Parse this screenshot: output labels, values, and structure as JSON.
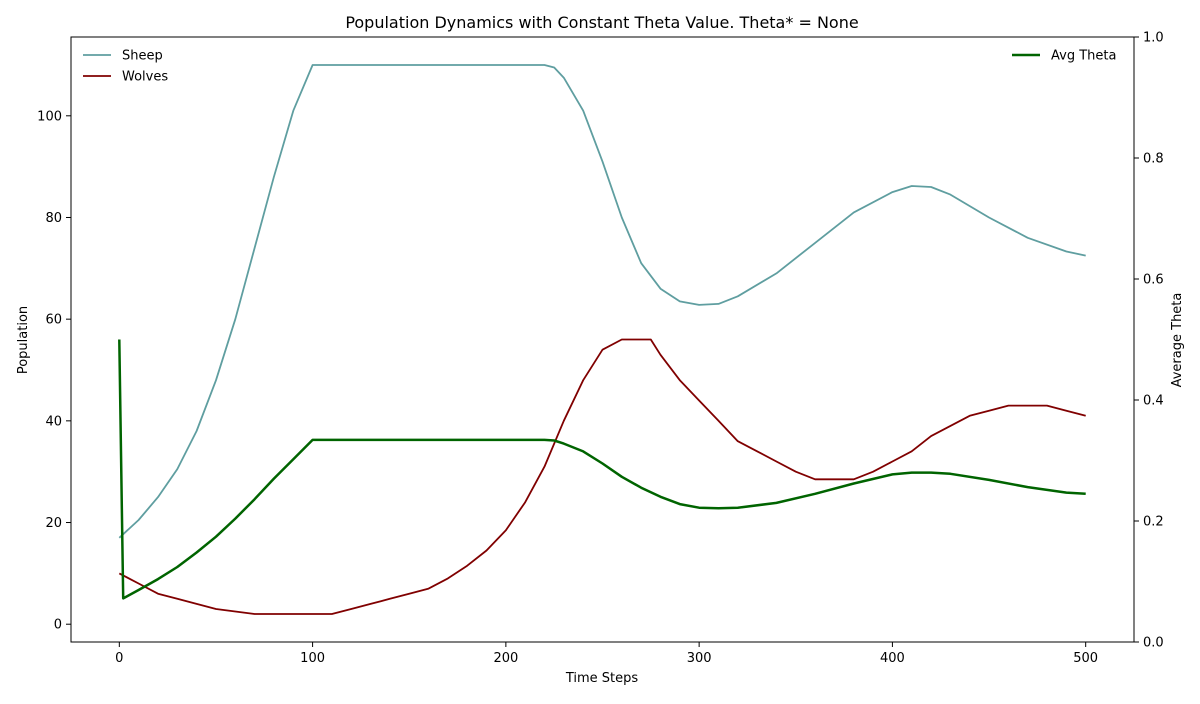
{
  "chart_data": {
    "type": "line",
    "title": "Population Dynamics with Constant Theta Value. Theta* = None",
    "xlabel": "Time Steps",
    "ylabel_left": "Population",
    "ylabel_right": "Average Theta",
    "xlim": [
      -25,
      525
    ],
    "ylim_left": [
      -3.5,
      115.5
    ],
    "ylim_right": [
      0,
      1
    ],
    "x_ticks": [
      0,
      100,
      200,
      300,
      400,
      500
    ],
    "y_ticks_left": [
      0,
      20,
      40,
      60,
      80,
      100
    ],
    "y_ticks_right": [
      0.0,
      0.2,
      0.4,
      0.6,
      0.8,
      1.0
    ],
    "grid": false,
    "legend_left_placement": "top-left",
    "legend_right_placement": "top-right",
    "series": [
      {
        "name": "Sheep",
        "axis": "left",
        "color": "#5f9ea0",
        "x": [
          0,
          10,
          20,
          30,
          40,
          50,
          60,
          70,
          80,
          90,
          100,
          110,
          120,
          140,
          160,
          180,
          200,
          220,
          225,
          230,
          240,
          250,
          260,
          270,
          280,
          290,
          300,
          310,
          320,
          340,
          360,
          380,
          400,
          410,
          420,
          430,
          450,
          470,
          490,
          500
        ],
        "values": [
          17,
          20.5,
          25,
          30.5,
          38,
          48,
          60,
          74,
          88,
          101,
          110,
          110,
          110,
          110,
          110,
          110,
          110,
          110,
          109.5,
          107.5,
          101,
          91,
          80,
          71,
          66,
          63.5,
          62.8,
          63,
          64.5,
          69,
          75,
          81,
          85,
          86.2,
          86,
          84.5,
          80,
          76,
          73.3,
          72.5
        ]
      },
      {
        "name": "Wolves",
        "axis": "left",
        "color": "#800000",
        "x": [
          0,
          10,
          20,
          30,
          40,
          50,
          60,
          70,
          80,
          90,
          100,
          110,
          120,
          130,
          140,
          150,
          160,
          170,
          180,
          190,
          200,
          210,
          220,
          230,
          240,
          250,
          260,
          270,
          275,
          280,
          290,
          300,
          310,
          320,
          330,
          340,
          350,
          360,
          370,
          380,
          390,
          400,
          410,
          420,
          430,
          440,
          450,
          460,
          470,
          480,
          490,
          500
        ],
        "values": [
          10,
          8,
          6,
          5,
          4,
          3,
          2.5,
          2,
          2,
          2,
          2,
          2,
          3,
          4,
          5,
          6,
          7,
          9,
          11.5,
          14.5,
          18.5,
          24,
          31,
          40,
          48,
          54,
          56,
          56,
          56,
          53,
          48,
          44,
          40,
          36,
          34,
          32,
          30,
          28.5,
          28.5,
          28.5,
          30,
          32,
          34,
          37,
          39,
          41,
          42,
          43,
          43,
          43,
          42,
          41
        ]
      },
      {
        "name": "Avg Theta",
        "axis": "right",
        "color": "#006400",
        "x": [
          0,
          2,
          10,
          20,
          30,
          40,
          50,
          60,
          70,
          80,
          90,
          100,
          110,
          120,
          140,
          160,
          180,
          200,
          220,
          225,
          230,
          240,
          250,
          260,
          270,
          280,
          290,
          300,
          310,
          320,
          340,
          360,
          380,
          400,
          410,
          420,
          430,
          450,
          470,
          490,
          500
        ],
        "values": [
          0.5,
          0.072,
          0.086,
          0.104,
          0.124,
          0.148,
          0.174,
          0.204,
          0.236,
          0.27,
          0.302,
          0.334,
          0.334,
          0.334,
          0.334,
          0.334,
          0.334,
          0.334,
          0.334,
          0.333,
          0.328,
          0.315,
          0.295,
          0.273,
          0.255,
          0.24,
          0.228,
          0.222,
          0.221,
          0.222,
          0.23,
          0.245,
          0.262,
          0.277,
          0.28,
          0.28,
          0.278,
          0.268,
          0.256,
          0.247,
          0.245
        ]
      }
    ]
  }
}
